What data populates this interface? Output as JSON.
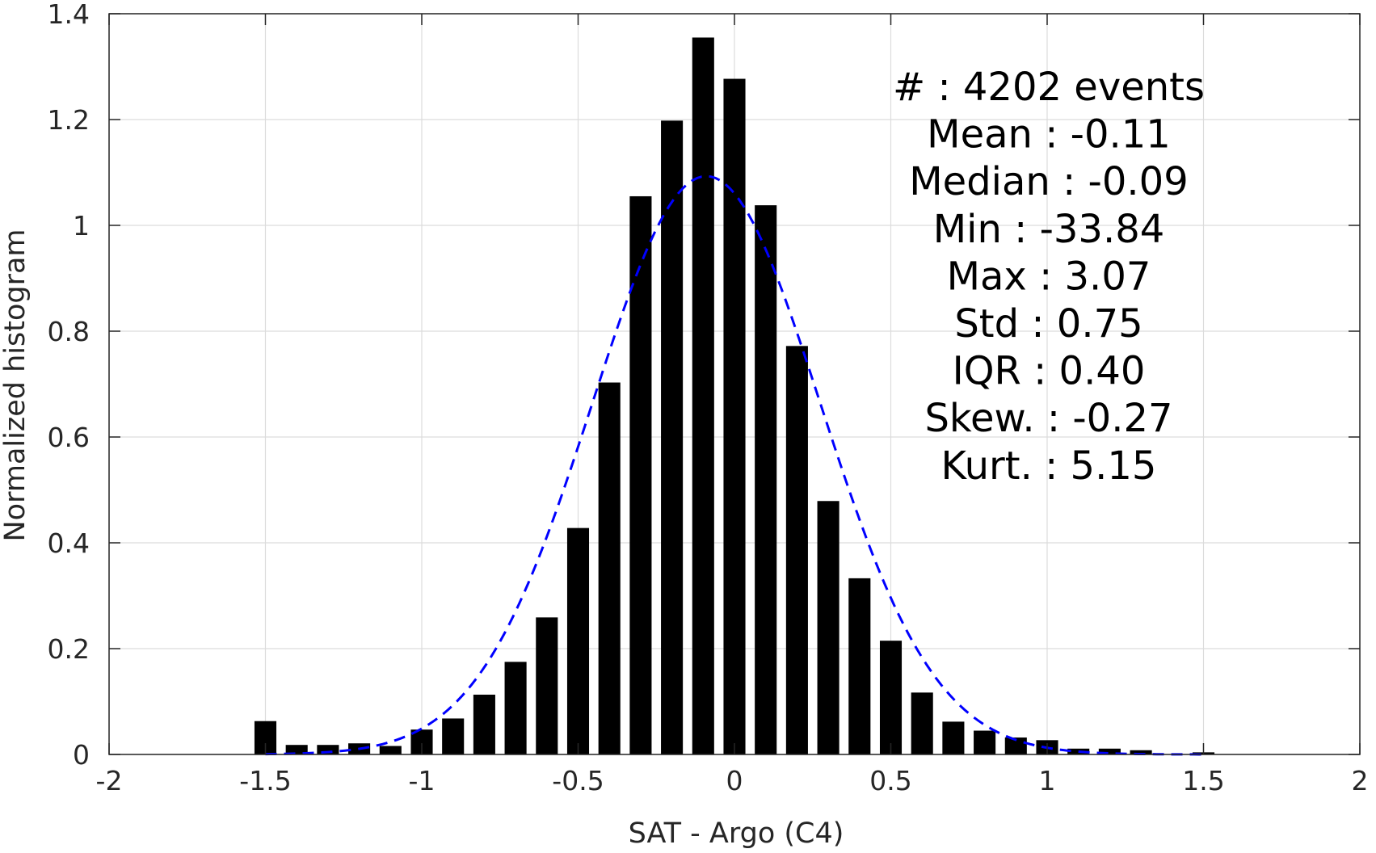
{
  "chart_data": {
    "type": "bar",
    "title": "",
    "xlabel": "SAT - Argo (C4)",
    "ylabel": "Normalized histogram",
    "xlim": [
      -2,
      2
    ],
    "ylim": [
      0,
      1.4
    ],
    "grid": true,
    "x_ticks": [
      "-2",
      "-1.5",
      "-1",
      "-0.5",
      "0",
      "0.5",
      "1",
      "1.5",
      "2"
    ],
    "y_ticks": [
      "0",
      "0.2",
      "0.4",
      "0.6",
      "0.8",
      "1",
      "1.2",
      "1.4"
    ],
    "bin_width": 0.1,
    "bar_width_ratio": 0.7,
    "bars": {
      "x": [
        -1.5,
        -1.4,
        -1.3,
        -1.2,
        -1.1,
        -1.0,
        -0.9,
        -0.8,
        -0.7,
        -0.6,
        -0.5,
        -0.4,
        -0.3,
        -0.2,
        -0.1,
        0.0,
        0.1,
        0.2,
        0.3,
        0.4,
        0.5,
        0.6,
        0.7,
        0.8,
        0.9,
        1.0,
        1.1,
        1.2,
        1.3,
        1.4,
        1.5
      ],
      "values": [
        0.063,
        0.018,
        0.018,
        0.021,
        0.016,
        0.047,
        0.068,
        0.113,
        0.175,
        0.259,
        0.428,
        0.703,
        1.055,
        1.198,
        1.355,
        1.277,
        1.038,
        0.772,
        0.479,
        0.333,
        0.215,
        0.117,
        0.062,
        0.045,
        0.032,
        0.027,
        0.011,
        0.011,
        0.008,
        0.0,
        0.004
      ],
      "color": "#000000"
    },
    "fit_curve": {
      "type": "gaussian",
      "mean": -0.09,
      "std": 0.365,
      "x_range": [
        -1.5,
        1.5
      ],
      "color": "#0000ff",
      "style": "dashed"
    },
    "annotations": [
      "#  : 4202 events",
      "Mean : -0.11",
      "Median : -0.09",
      "Min : -33.84",
      "Max : 3.07",
      "Std : 0.75",
      "IQR : 0.40",
      "Skew. : -0.27",
      "Kurt. : 5.15"
    ],
    "annotation_placement": "top-right"
  }
}
